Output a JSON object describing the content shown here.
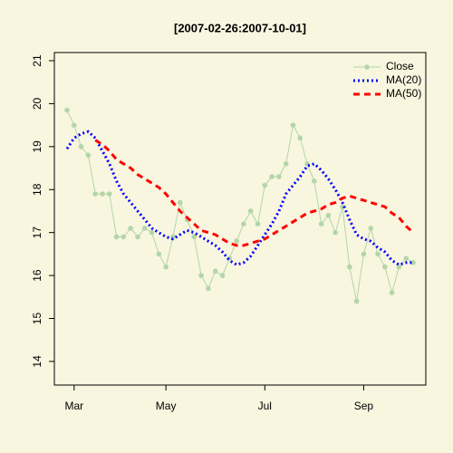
{
  "chart_data": {
    "type": "line",
    "title": "[2007-02-26:2007-10-01]",
    "categories": [
      null,
      "Mar",
      null,
      null,
      null,
      null,
      null,
      null,
      null,
      null,
      null,
      null,
      null,
      null,
      "May",
      null,
      null,
      null,
      null,
      null,
      null,
      null,
      null,
      null,
      null,
      null,
      null,
      null,
      "Jul",
      null,
      null,
      null,
      null,
      null,
      null,
      null,
      null,
      null,
      null,
      null,
      null,
      null,
      "Sep",
      null,
      null,
      null,
      null,
      null,
      null,
      null
    ],
    "series": [
      {
        "name": "Close",
        "color": "#b3d6a8",
        "line_style": "solid",
        "markers": true,
        "values": [
          19.85,
          19.5,
          19.0,
          18.8,
          17.9,
          17.9,
          17.9,
          16.9,
          16.9,
          17.1,
          16.9,
          17.1,
          17.0,
          16.5,
          16.2,
          16.9,
          17.7,
          17.3,
          16.9,
          16.0,
          15.7,
          16.1,
          16.0,
          16.4,
          16.8,
          17.2,
          17.5,
          17.2,
          18.1,
          18.3,
          18.3,
          18.6,
          19.5,
          19.2,
          18.6,
          18.2,
          17.2,
          17.4,
          17.0,
          17.6,
          16.2,
          15.4,
          16.5,
          17.1,
          16.5,
          16.2,
          15.6,
          16.2,
          16.4,
          16.3
        ]
      },
      {
        "name": "MA(20)",
        "color": "#0000ff",
        "line_style": "dotted",
        "markers": false,
        "values": [
          18.95,
          19.2,
          19.3,
          19.35,
          19.2,
          18.9,
          18.6,
          18.2,
          17.9,
          17.7,
          17.5,
          17.3,
          17.1,
          17.0,
          16.9,
          16.85,
          16.95,
          17.05,
          17.0,
          16.9,
          16.8,
          16.7,
          16.55,
          16.35,
          16.25,
          16.3,
          16.45,
          16.7,
          16.95,
          17.2,
          17.5,
          17.9,
          18.1,
          18.3,
          18.55,
          18.6,
          18.45,
          18.25,
          18.0,
          17.7,
          17.3,
          16.95,
          16.85,
          16.8,
          16.65,
          16.55,
          16.35,
          16.25,
          16.3,
          16.3
        ]
      },
      {
        "name": "MA(50)",
        "color": "#ff0000",
        "line_style": "dashed",
        "markers": false,
        "values": [
          null,
          null,
          null,
          null,
          19.15,
          19.05,
          18.9,
          18.7,
          18.6,
          18.5,
          18.35,
          18.25,
          18.15,
          18.05,
          17.9,
          17.7,
          17.5,
          17.35,
          17.2,
          17.05,
          17.0,
          16.95,
          16.85,
          16.75,
          16.7,
          16.7,
          16.75,
          16.8,
          16.85,
          16.95,
          17.05,
          17.15,
          17.25,
          17.35,
          17.45,
          17.5,
          17.55,
          17.65,
          17.7,
          17.8,
          17.85,
          17.8,
          17.75,
          17.7,
          17.65,
          17.6,
          17.45,
          17.35,
          17.15,
          17.0
        ]
      }
    ],
    "ylim": [
      13.45,
      21.19
    ],
    "yticks": [
      14,
      15,
      16,
      17,
      18,
      19,
      20,
      21
    ],
    "legend": "topright",
    "grid": false
  }
}
